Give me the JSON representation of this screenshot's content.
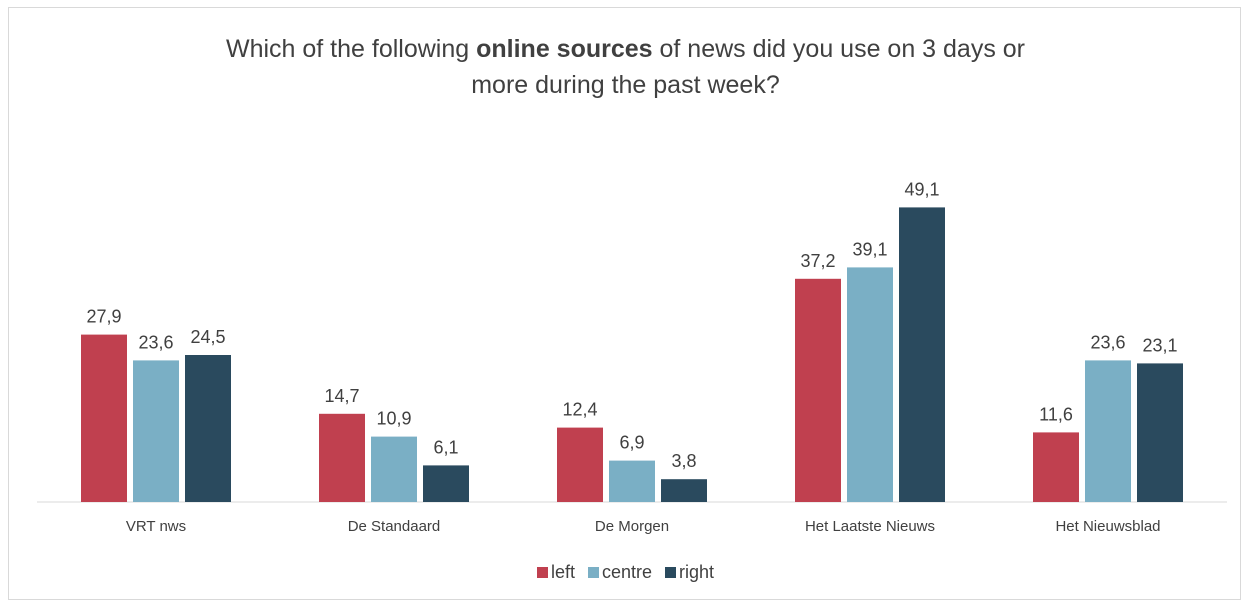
{
  "chart_data": {
    "type": "bar",
    "title_parts": [
      {
        "text": "Which of the following ",
        "bold": false
      },
      {
        "text": "online sources",
        "bold": true
      },
      {
        "text": " of news did you use on 3 days or",
        "bold": false
      },
      {
        "text": "more during the past week?",
        "bold": false,
        "newline": true
      }
    ],
    "categories": [
      "VRT nws",
      "De Standaard",
      "De Morgen",
      "Het Laatste Nieuws",
      "Het Nieuwsblad"
    ],
    "series": [
      {
        "name": "left",
        "color": "#c0404f",
        "values": [
          27.9,
          14.7,
          12.4,
          37.2,
          11.6
        ],
        "labels": [
          "27,9",
          "14,7",
          "12,4",
          "37,2",
          "11,6"
        ]
      },
      {
        "name": "centre",
        "color": "#7aafc5",
        "values": [
          23.6,
          10.9,
          6.9,
          39.1,
          23.6
        ],
        "labels": [
          "23,6",
          "10,9",
          "6,9",
          "39,1",
          "23,6"
        ]
      },
      {
        "name": "right",
        "color": "#2a4a5e",
        "values": [
          24.5,
          6.1,
          3.8,
          49.1,
          23.1
        ],
        "labels": [
          "24,5",
          "6,1",
          "3,8",
          "49,1",
          "23,1"
        ]
      }
    ],
    "ylim": [
      0,
      55
    ],
    "grid": false,
    "legend_position": "bottom"
  }
}
